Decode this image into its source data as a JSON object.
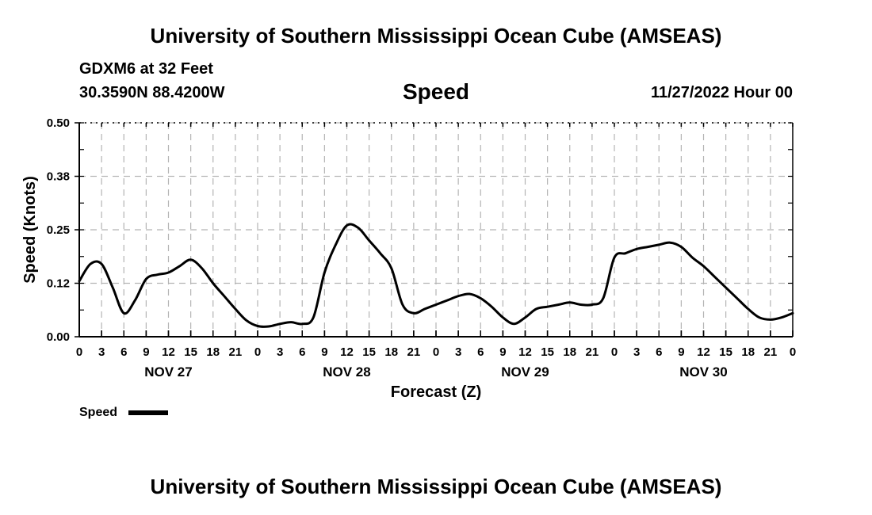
{
  "header": {
    "title": "University of Southern Mississippi Ocean Cube (AMSEAS)",
    "station": "GDXM6 at 32 Feet",
    "coords": "30.3590N  88.4200W",
    "datetime": "11/27/2022 Hour 00"
  },
  "footer": {
    "title": "University of Southern Mississippi Ocean Cube (AMSEAS)"
  },
  "chart_data": {
    "type": "line",
    "title": "Speed",
    "xlabel": "Forecast (Z)",
    "ylabel": "Speed (Knots)",
    "ylim": [
      0,
      0.5
    ],
    "yticks": [
      0.0,
      0.125,
      0.25,
      0.375,
      0.5
    ],
    "ytick_labels": [
      "0.00",
      "0.12",
      "0.25",
      "0.38",
      "0.50"
    ],
    "xlim": [
      0,
      96
    ],
    "xticks": [
      0,
      3,
      6,
      9,
      12,
      15,
      18,
      21,
      24,
      27,
      30,
      33,
      36,
      39,
      42,
      45,
      48,
      51,
      54,
      57,
      60,
      63,
      66,
      69,
      72,
      75,
      78,
      81,
      84,
      87,
      90,
      93,
      96
    ],
    "xtick_labels": [
      "0",
      "3",
      "6",
      "9",
      "12",
      "15",
      "18",
      "21",
      "0",
      "3",
      "6",
      "9",
      "12",
      "15",
      "18",
      "21",
      "0",
      "3",
      "6",
      "9",
      "12",
      "15",
      "18",
      "21",
      "0",
      "3",
      "6",
      "9",
      "12",
      "15",
      "18",
      "21",
      "0"
    ],
    "day_labels": [
      {
        "x": 12,
        "label": "NOV 27"
      },
      {
        "x": 36,
        "label": "NOV 28"
      },
      {
        "x": 60,
        "label": "NOV 29"
      },
      {
        "x": 84,
        "label": "NOV 30"
      }
    ],
    "grid": true,
    "legend": {
      "position": "bottom-left",
      "label": "Speed"
    },
    "series": [
      {
        "name": "Speed",
        "color": "#000000",
        "x": [
          0,
          1.5,
          3,
          4.5,
          6,
          7.5,
          9,
          10.5,
          12,
          13.5,
          15,
          16.5,
          18,
          19.5,
          21,
          22.5,
          24,
          25.5,
          27,
          28.5,
          30,
          31.5,
          33,
          34.5,
          36,
          37.5,
          39,
          40.5,
          42,
          43.5,
          45,
          46.5,
          48,
          49.5,
          51,
          52.5,
          54,
          55.5,
          57,
          58.5,
          60,
          61.5,
          63,
          64.5,
          66,
          67.5,
          69,
          70.5,
          72,
          73.5,
          75,
          76.5,
          78,
          79.5,
          81,
          82.5,
          84,
          85.5,
          87,
          88.5,
          90,
          91.5,
          93,
          94.5,
          96
        ],
        "values": [
          0.13,
          0.17,
          0.17,
          0.115,
          0.055,
          0.085,
          0.135,
          0.145,
          0.15,
          0.165,
          0.18,
          0.16,
          0.125,
          0.095,
          0.065,
          0.038,
          0.025,
          0.024,
          0.03,
          0.034,
          0.03,
          0.045,
          0.15,
          0.215,
          0.26,
          0.255,
          0.225,
          0.195,
          0.16,
          0.075,
          0.055,
          0.065,
          0.075,
          0.085,
          0.095,
          0.1,
          0.09,
          0.07,
          0.045,
          0.03,
          0.045,
          0.065,
          0.07,
          0.075,
          0.08,
          0.075,
          0.075,
          0.09,
          0.185,
          0.195,
          0.205,
          0.21,
          0.215,
          0.22,
          0.21,
          0.185,
          0.165,
          0.14,
          0.115,
          0.09,
          0.065,
          0.045,
          0.04,
          0.045,
          0.055
        ]
      }
    ]
  }
}
